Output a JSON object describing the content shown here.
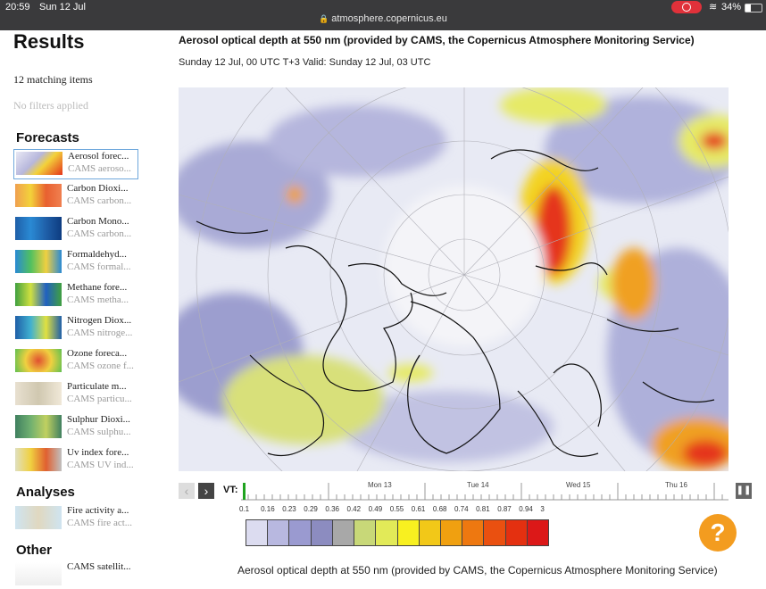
{
  "status_bar": {
    "time": "20:59",
    "date": "Sun 12 Jul",
    "url": "atmosphere.copernicus.eu",
    "battery": "34%"
  },
  "sidebar": {
    "title": "Results",
    "matching": "12 matching items",
    "no_filters": "No filters applied",
    "sections": {
      "forecasts": "Forecasts",
      "analyses": "Analyses",
      "other": "Other"
    },
    "forecasts": [
      {
        "title": "Aerosol forec...",
        "sub": "CAMS aeroso..."
      },
      {
        "title": "Carbon Dioxi...",
        "sub": "CAMS carbon..."
      },
      {
        "title": "Carbon Mono...",
        "sub": "CAMS carbon..."
      },
      {
        "title": "Formaldehyd...",
        "sub": "CAMS formal..."
      },
      {
        "title": "Methane fore...",
        "sub": "CAMS metha..."
      },
      {
        "title": "Nitrogen Diox...",
        "sub": "CAMS nitroge..."
      },
      {
        "title": "Ozone foreca...",
        "sub": "CAMS ozone f..."
      },
      {
        "title": "Particulate m...",
        "sub": "CAMS particu..."
      },
      {
        "title": "Sulphur Dioxi...",
        "sub": "CAMS sulphu..."
      },
      {
        "title": "Uv index fore...",
        "sub": "CAMS UV ind..."
      }
    ],
    "analyses": [
      {
        "title": "Fire activity a...",
        "sub": "CAMS fire act..."
      }
    ],
    "other": [
      {
        "title": "CAMS satellit...",
        "sub": ""
      }
    ]
  },
  "main": {
    "title": "Aerosol optical depth at 550 nm (provided by CAMS, the Copernicus Atmosphere Monitoring Service)",
    "subtitle": "Sunday 12 Jul, 00 UTC T+3 Valid: Sunday 12 Jul, 03 UTC",
    "bottom_caption": "Aerosol optical depth at 550 nm (provided by CAMS, the Copernicus Atmosphere Monitoring Service)"
  },
  "timeline": {
    "vt_label": "VT:",
    "days": [
      "Mon 13",
      "Tue 14",
      "Wed 15",
      "Thu 16"
    ],
    "prev": "‹",
    "next": "›",
    "pause": "❚❚"
  },
  "legend": {
    "values": [
      "0.1",
      "0.16",
      "0.23",
      "0.29",
      "0.36",
      "0.42",
      "0.49",
      "0.55",
      "0.61",
      "0.68",
      "0.74",
      "0.81",
      "0.87",
      "0.94",
      "3"
    ],
    "colors": [
      "#dcdcf0",
      "#b8b8e0",
      "#9a9ad0",
      "#8c8cc0",
      "#a8a8a8",
      "#c8d878",
      "#e2ea58",
      "#f8f020",
      "#f2c818",
      "#f0a010",
      "#ee7810",
      "#ea5010",
      "#e43010",
      "#dc1818"
    ]
  },
  "help": {
    "label": "?"
  }
}
